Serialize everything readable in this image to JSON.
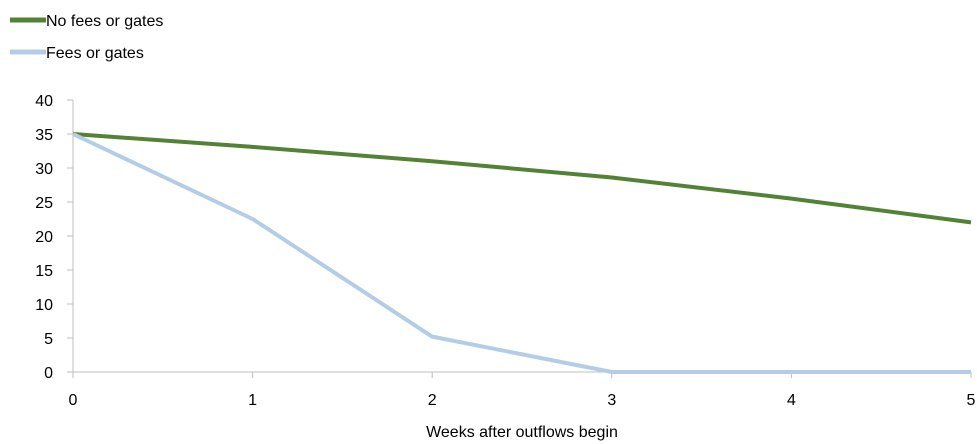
{
  "chart_data": {
    "type": "line",
    "title": "",
    "xlabel": "Weeks after outflows begin",
    "ylabel": "",
    "x": [
      0,
      1,
      2,
      3,
      4,
      5
    ],
    "xticks": [
      "0",
      "1",
      "2",
      "3",
      "4",
      "5"
    ],
    "yticks": [
      "0",
      "5",
      "10",
      "15",
      "20",
      "25",
      "30",
      "35",
      "40"
    ],
    "xlim": [
      0,
      5
    ],
    "ylim": [
      0,
      40
    ],
    "grid": false,
    "legend_position": "top-left",
    "series": [
      {
        "name": "No fees or gates",
        "color": "#548235",
        "values": [
          35,
          33.1,
          31,
          28.6,
          25.5,
          22
        ]
      },
      {
        "name": "Fees or gates",
        "color": "#B4CDE6",
        "values": [
          35,
          22.5,
          5.2,
          0,
          0,
          0
        ]
      }
    ]
  }
}
